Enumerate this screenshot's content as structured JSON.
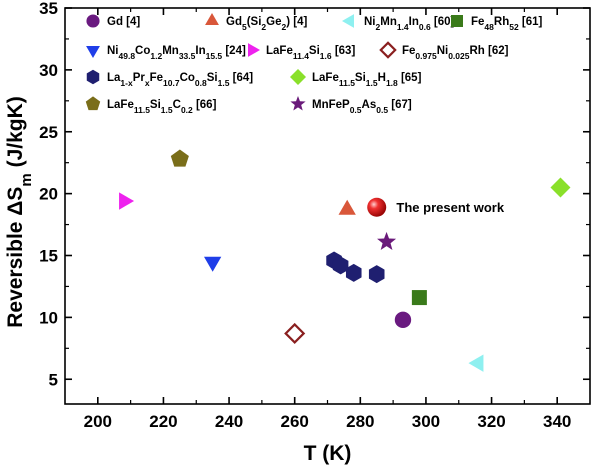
{
  "chart_data": {
    "type": "scatter",
    "xlabel": "T (K)",
    "ylabel": "Reversible ΔS",
    "ylabel_sub": "m",
    "ylabel_unit": " (J/kgK)",
    "xlim": [
      190,
      350
    ],
    "ylim": [
      3,
      35
    ],
    "x_ticks": [
      200,
      220,
      240,
      260,
      280,
      300,
      320,
      340
    ],
    "y_ticks": [
      5,
      10,
      15,
      20,
      25,
      30,
      35
    ],
    "legend_position": "top",
    "series": [
      {
        "label": [
          {
            "t": "Gd [4]"
          }
        ],
        "marker": "circle",
        "color": "#6a1a80",
        "points": [
          {
            "x": 293,
            "y": 9.8
          }
        ]
      },
      {
        "label": [
          {
            "t": "Gd"
          },
          {
            "t": "5",
            "s": "sub"
          },
          {
            "t": "(Si"
          },
          {
            "t": "2",
            "s": "sub"
          },
          {
            "t": "Ge"
          },
          {
            "t": "2",
            "s": "sub"
          },
          {
            "t": ") [4]"
          }
        ],
        "marker": "triangle-up",
        "color": "#d9573a",
        "points": [
          {
            "x": 276,
            "y": 18.7
          }
        ]
      },
      {
        "label": [
          {
            "t": "Ni"
          },
          {
            "t": "2",
            "s": "sub"
          },
          {
            "t": "Mn"
          },
          {
            "t": "1.4",
            "s": "sub"
          },
          {
            "t": "In"
          },
          {
            "t": "0.6",
            "s": "sub"
          },
          {
            "t": " [60]"
          }
        ],
        "marker": "triangle-left",
        "color": "#8ef0f0",
        "points": [
          {
            "x": 316,
            "y": 6.3
          }
        ]
      },
      {
        "label": [
          {
            "t": "Fe"
          },
          {
            "t": "48",
            "s": "sub"
          },
          {
            "t": "Rh"
          },
          {
            "t": "52",
            "s": "sub"
          },
          {
            "t": " [61]"
          }
        ],
        "marker": "square",
        "color": "#3a7a1a",
        "points": [
          {
            "x": 298,
            "y": 11.6
          }
        ]
      },
      {
        "label": [
          {
            "t": "Ni"
          },
          {
            "t": "49.8",
            "s": "sub"
          },
          {
            "t": "Co"
          },
          {
            "t": "1.2",
            "s": "sub"
          },
          {
            "t": "Mn"
          },
          {
            "t": "33.5",
            "s": "sub"
          },
          {
            "t": "In"
          },
          {
            "t": "15.5",
            "s": "sub"
          },
          {
            "t": " [24]"
          }
        ],
        "marker": "triangle-down",
        "color": "#1f3ee8",
        "points": [
          {
            "x": 235,
            "y": 14.5
          }
        ]
      },
      {
        "label": [
          {
            "t": "LaFe"
          },
          {
            "t": "11.4",
            "s": "sub"
          },
          {
            "t": "Si"
          },
          {
            "t": "1.6",
            "s": "sub"
          },
          {
            "t": " [63]"
          }
        ],
        "marker": "triangle-right",
        "color": "#ee22ee",
        "points": [
          {
            "x": 208,
            "y": 19.4
          }
        ]
      },
      {
        "label": [
          {
            "t": "Fe"
          },
          {
            "t": "0.975",
            "s": "sub"
          },
          {
            "t": "Ni"
          },
          {
            "t": "0.025",
            "s": "sub"
          },
          {
            "t": "Rh [62]"
          }
        ],
        "marker": "diamond-open",
        "color": "#8a1f1f",
        "points": [
          {
            "x": 260,
            "y": 8.7
          }
        ]
      },
      {
        "label": [
          {
            "t": "La"
          },
          {
            "t": "1-x",
            "s": "sub"
          },
          {
            "t": "Pr"
          },
          {
            "t": "x",
            "s": "sub"
          },
          {
            "t": "Fe"
          },
          {
            "t": "10.7",
            "s": "sub"
          },
          {
            "t": "Co"
          },
          {
            "t": "0.8",
            "s": "sub"
          },
          {
            "t": "Si"
          },
          {
            "t": "1.5",
            "s": "sub"
          },
          {
            "t": " [64]"
          }
        ],
        "marker": "hexagon",
        "color": "#1f1f70",
        "points": [
          {
            "x": 272,
            "y": 14.6
          },
          {
            "x": 274,
            "y": 14.2
          },
          {
            "x": 278,
            "y": 13.6
          },
          {
            "x": 285,
            "y": 13.5
          }
        ]
      },
      {
        "label": [
          {
            "t": "LaFe"
          },
          {
            "t": "11.5",
            "s": "sub"
          },
          {
            "t": "Si"
          },
          {
            "t": "1.5",
            "s": "sub"
          },
          {
            "t": "H"
          },
          {
            "t": "1.8",
            "s": "sub"
          },
          {
            "t": " [65]"
          }
        ],
        "marker": "diamond",
        "color": "#8ae02a",
        "points": [
          {
            "x": 341,
            "y": 20.5
          }
        ]
      },
      {
        "label": [
          {
            "t": "LaFe"
          },
          {
            "t": "11.5",
            "s": "sub"
          },
          {
            "t": "Si"
          },
          {
            "t": "1.5",
            "s": "sub"
          },
          {
            "t": "C"
          },
          {
            "t": "0.2",
            "s": "sub"
          },
          {
            "t": " [66]"
          }
        ],
        "marker": "pentagon",
        "color": "#7a6e1a",
        "points": [
          {
            "x": 225,
            "y": 22.8
          }
        ]
      },
      {
        "label": [
          {
            "t": "MnFeP"
          },
          {
            "t": "0.5",
            "s": "sub"
          },
          {
            "t": "As"
          },
          {
            "t": "0.5",
            "s": "sub"
          },
          {
            "t": " [67]"
          }
        ],
        "marker": "star",
        "color": "#6a1a7a",
        "points": [
          {
            "x": 288,
            "y": 16.1
          }
        ]
      },
      {
        "label": [],
        "marker": "sphere",
        "color": "#e01818",
        "points": [
          {
            "x": 285,
            "y": 18.9
          }
        ]
      }
    ],
    "annotations": [
      {
        "text": "The present work",
        "x": 291,
        "y": 18.9
      }
    ]
  }
}
